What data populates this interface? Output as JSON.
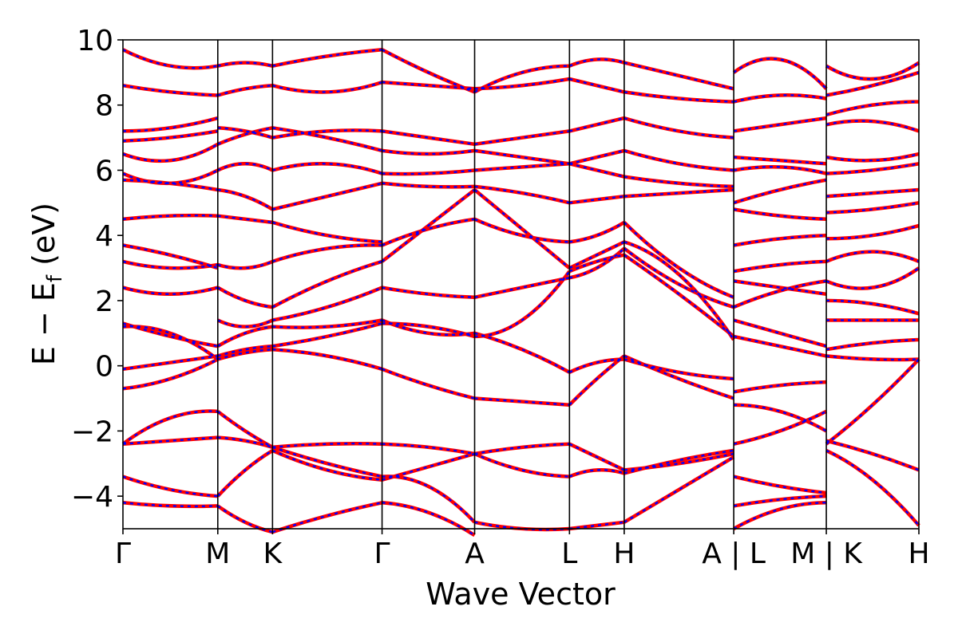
{
  "chart_data": {
    "type": "line",
    "title": "",
    "xlabel": "Wave Vector",
    "ylabel_parts": {
      "main": "E  −  E",
      "sub": "f",
      "unit": " (eV)"
    },
    "ylim": [
      -5,
      10
    ],
    "y_ticks": [
      -4,
      -2,
      0,
      2,
      4,
      6,
      8,
      10
    ],
    "y_tick_labels": [
      "−4",
      "−2",
      "0",
      "2",
      "4",
      "6",
      "8",
      "10"
    ],
    "path_segments": [
      {
        "from": "Γ",
        "to": "M",
        "length": 1.0
      },
      {
        "from": "M",
        "to": "K",
        "length": 0.577
      },
      {
        "from": "K",
        "to": "Γ",
        "length": 1.155
      },
      {
        "from": "Γ",
        "to": "A",
        "length": 0.976
      },
      {
        "from": "A",
        "to": "L",
        "length": 1.0
      },
      {
        "from": "L",
        "to": "H",
        "length": 0.577
      },
      {
        "from": "H",
        "to": "A",
        "length": 1.155
      },
      {
        "from": "L",
        "to": "M",
        "length": 0.976
      },
      {
        "from": "K",
        "to": "H",
        "length": 0.976
      }
    ],
    "x_tick_labels": [
      "Γ",
      "M",
      "K",
      "Γ",
      "A",
      "L",
      "H",
      "A | L",
      "M | K",
      "H"
    ],
    "series": [
      {
        "style": {
          "color": "#ff0000",
          "dash": "solid"
        }
      },
      {
        "style": {
          "color": "#0000ff",
          "dash": "dashed"
        }
      }
    ],
    "segment_bands": [
      [
        [
          [
            -0.7,
            -0.4,
            0.2
          ],
          [
            -0.1,
            0.1,
            0.3
          ],
          [
            1.2,
            1.0,
            0.2
          ],
          [
            1.3,
            0.9,
            0.6
          ],
          [
            2.4,
            2.2,
            2.4
          ],
          [
            3.2,
            3.0,
            3.1
          ],
          [
            3.7,
            3.4,
            3.0
          ],
          [
            4.5,
            4.6,
            4.6
          ],
          [
            5.7,
            5.6,
            5.4
          ],
          [
            5.9,
            5.6,
            6.0
          ],
          [
            6.5,
            6.3,
            6.8
          ],
          [
            6.9,
            7.0,
            7.2
          ],
          [
            7.2,
            7.3,
            7.6
          ],
          [
            8.6,
            8.4,
            8.3
          ],
          [
            9.7,
            9.2,
            9.2
          ],
          [
            -2.4,
            -2.3,
            -2.2
          ],
          [
            -3.4,
            -3.8,
            -4.0
          ],
          [
            -4.2,
            -4.3,
            -4.3
          ],
          [
            -2.4,
            -1.6,
            -1.4
          ]
        ],
        [
          [
            0.2,
            0.4,
            0.5
          ],
          [
            0.3,
            0.5,
            0.6
          ],
          [
            0.6,
            1.0,
            1.2
          ],
          [
            1.4,
            1.2,
            1.4
          ],
          [
            2.4,
            2.0,
            1.8
          ],
          [
            3.1,
            3.0,
            3.2
          ],
          [
            4.6,
            4.5,
            4.4
          ],
          [
            5.4,
            5.2,
            4.8
          ],
          [
            6.0,
            6.2,
            6.0
          ],
          [
            6.8,
            7.1,
            7.3
          ],
          [
            7.3,
            7.2,
            7.0
          ],
          [
            8.3,
            8.5,
            8.6
          ],
          [
            9.2,
            9.3,
            9.2
          ],
          [
            -2.2,
            -2.3,
            -2.5
          ],
          [
            -4.0,
            -3.2,
            -2.6
          ],
          [
            -4.3,
            -4.8,
            -5.1
          ],
          [
            -1.4,
            -2.0,
            -2.5
          ]
        ],
        [
          [
            0.5,
            0.3,
            -0.1
          ],
          [
            0.6,
            0.9,
            1.3
          ],
          [
            1.2,
            1.2,
            1.4
          ],
          [
            1.4,
            1.8,
            2.4
          ],
          [
            1.8,
            2.6,
            3.2
          ],
          [
            3.2,
            3.6,
            3.7
          ],
          [
            4.4,
            4.0,
            3.8
          ],
          [
            4.8,
            5.2,
            5.6
          ],
          [
            6.0,
            6.2,
            5.9
          ],
          [
            7.3,
            7.0,
            6.6
          ],
          [
            7.0,
            7.2,
            7.2
          ],
          [
            8.6,
            8.4,
            8.7
          ],
          [
            9.2,
            9.5,
            9.7
          ],
          [
            -2.5,
            -2.4,
            -2.4
          ],
          [
            -2.6,
            -3.2,
            -3.5
          ],
          [
            -2.5,
            -3.0,
            -3.4
          ],
          [
            -5.1,
            -4.6,
            -4.2
          ]
        ],
        [
          [
            -0.1,
            -0.6,
            -1.0
          ],
          [
            1.3,
            1.2,
            0.9
          ],
          [
            1.4,
            1.0,
            1.0
          ],
          [
            2.4,
            2.2,
            2.1
          ],
          [
            3.7,
            4.2,
            4.5
          ],
          [
            3.2,
            4.3,
            5.4
          ],
          [
            5.6,
            5.5,
            5.5
          ],
          [
            5.9,
            5.9,
            6.0
          ],
          [
            6.6,
            6.5,
            6.6
          ],
          [
            7.2,
            7.0,
            6.8
          ],
          [
            8.7,
            8.6,
            8.5
          ],
          [
            9.7,
            9.0,
            8.4
          ],
          [
            -2.4,
            -2.5,
            -2.7
          ],
          [
            -3.5,
            -3.1,
            -2.7
          ],
          [
            -3.4,
            -3.7,
            -4.8
          ],
          [
            -4.2,
            -4.5,
            -5.2
          ]
        ],
        [
          [
            -1.0,
            -1.1,
            -1.2
          ],
          [
            0.9,
            1.4,
            2.9
          ],
          [
            1.0,
            0.5,
            -0.2
          ],
          [
            2.1,
            2.4,
            2.7
          ],
          [
            4.5,
            4.0,
            3.8
          ],
          [
            5.4,
            4.2,
            3.0
          ],
          [
            5.5,
            5.3,
            5.0
          ],
          [
            6.0,
            6.1,
            6.2
          ],
          [
            6.6,
            6.4,
            6.2
          ],
          [
            6.8,
            7.0,
            7.2
          ],
          [
            8.5,
            8.6,
            8.8
          ],
          [
            8.4,
            9.0,
            9.2
          ],
          [
            -2.7,
            -2.5,
            -2.4
          ],
          [
            -2.7,
            -3.2,
            -3.4
          ],
          [
            -4.8,
            -5.0,
            -5.0
          ]
        ],
        [
          [
            -1.2,
            -0.4,
            0.3
          ],
          [
            2.9,
            3.2,
            3.4
          ],
          [
            -0.2,
            0.1,
            0.2
          ],
          [
            2.7,
            3.0,
            3.6
          ],
          [
            3.8,
            4.0,
            4.4
          ],
          [
            3.0,
            3.4,
            3.8
          ],
          [
            5.0,
            5.1,
            5.2
          ],
          [
            6.2,
            6.0,
            5.8
          ],
          [
            6.2,
            6.4,
            6.6
          ],
          [
            7.2,
            7.4,
            7.6
          ],
          [
            8.8,
            8.6,
            8.4
          ],
          [
            9.2,
            9.4,
            9.3
          ],
          [
            -2.4,
            -2.8,
            -3.2
          ],
          [
            -3.4,
            -3.2,
            -3.3
          ],
          [
            -5.0,
            -4.9,
            -4.8
          ]
        ],
        [
          [
            0.3,
            -0.4,
            -1.0
          ],
          [
            3.4,
            2.2,
            0.9
          ],
          [
            0.2,
            -0.2,
            -0.4
          ],
          [
            3.6,
            2.5,
            1.8
          ],
          [
            4.4,
            3.0,
            2.1
          ],
          [
            3.8,
            2.8,
            0.8
          ],
          [
            5.2,
            5.3,
            5.4
          ],
          [
            5.8,
            5.6,
            5.5
          ],
          [
            6.6,
            6.2,
            6.0
          ],
          [
            7.6,
            7.2,
            7.0
          ],
          [
            8.4,
            8.2,
            8.1
          ],
          [
            9.3,
            8.9,
            8.5
          ],
          [
            -3.2,
            -3.0,
            -2.7
          ],
          [
            -3.3,
            -2.9,
            -2.6
          ],
          [
            -4.8,
            -3.8,
            -2.8
          ]
        ],
        [
          [
            -0.8,
            -0.6,
            -0.5
          ],
          [
            -1.2,
            -1.4,
            -2.0
          ],
          [
            0.9,
            0.6,
            0.3
          ],
          [
            1.4,
            1.0,
            0.6
          ],
          [
            1.8,
            2.3,
            2.6
          ],
          [
            2.6,
            2.4,
            2.2
          ],
          [
            2.9,
            3.1,
            3.2
          ],
          [
            3.7,
            3.9,
            4.0
          ],
          [
            4.8,
            4.6,
            4.5
          ],
          [
            5.0,
            5.4,
            5.7
          ],
          [
            6.0,
            6.1,
            5.9
          ],
          [
            6.4,
            6.3,
            6.2
          ],
          [
            7.2,
            7.4,
            7.6
          ],
          [
            8.1,
            8.3,
            8.2
          ],
          [
            9.0,
            9.4,
            8.5
          ],
          [
            -2.4,
            -2.0,
            -1.4
          ],
          [
            -3.4,
            -3.7,
            -3.9
          ],
          [
            -4.3,
            -4.1,
            -4.0
          ],
          [
            -5.0,
            -4.4,
            -4.2
          ]
        ],
        [
          [
            0.3,
            0.2,
            0.2
          ],
          [
            0.5,
            0.7,
            0.8
          ],
          [
            1.4,
            1.4,
            1.4
          ],
          [
            2.0,
            1.9,
            1.6
          ],
          [
            2.6,
            2.4,
            3.0
          ],
          [
            3.2,
            3.5,
            3.2
          ],
          [
            3.9,
            4.0,
            4.3
          ],
          [
            4.7,
            4.8,
            5.0
          ],
          [
            5.2,
            5.3,
            5.4
          ],
          [
            5.9,
            6.0,
            6.2
          ],
          [
            6.4,
            6.3,
            6.5
          ],
          [
            7.4,
            7.5,
            7.2
          ],
          [
            7.7,
            8.0,
            8.1
          ],
          [
            8.3,
            8.6,
            9.0
          ],
          [
            9.2,
            8.8,
            9.3
          ],
          [
            -2.3,
            -2.7,
            -3.2
          ],
          [
            -2.6,
            -3.5,
            -4.9
          ],
          [
            -2.4,
            -1.2,
            0.2
          ]
        ]
      ]
    ]
  }
}
